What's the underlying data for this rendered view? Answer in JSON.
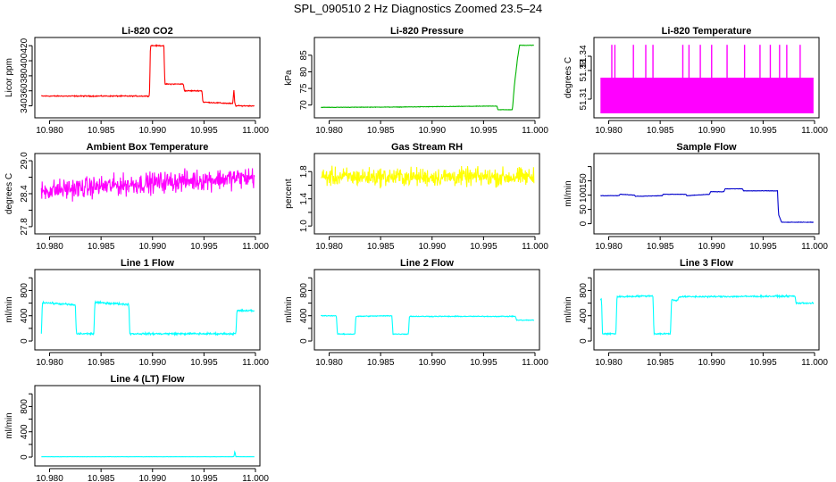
{
  "figure": {
    "title": "SPL_090510  2 Hz Diagnostics Zoomed 23.5–24"
  },
  "chart_data": [
    {
      "type": "line",
      "title": "Li-820 CO2",
      "ylabel": "Licor ppm",
      "color": "#ff0000",
      "xlim": [
        10.979,
        11.0
      ],
      "ylim": [
        330,
        425
      ],
      "xticks": [
        10.98,
        10.985,
        10.99,
        10.995,
        11.0
      ],
      "xtick_labels": [
        "10.980",
        "10.985",
        "10.990",
        "10.995",
        "11.000"
      ],
      "yticks": [
        340,
        360,
        380,
        400,
        420
      ],
      "ytick_labels": [
        "340",
        "360",
        "380",
        "400",
        "420"
      ],
      "series": [
        {
          "x": [
            10.9792,
            10.9897,
            10.9898,
            10.9911,
            10.9912,
            10.993,
            10.9931,
            10.9948,
            10.9949,
            10.9978,
            10.9979,
            10.998,
            10.9981,
            10.9999
          ],
          "y": [
            353,
            353,
            420,
            420,
            369,
            369,
            360,
            360,
            345,
            343,
            362,
            343,
            340,
            340
          ],
          "noise": 1
        }
      ]
    },
    {
      "type": "line",
      "title": "Li-820 Pressure",
      "ylabel": "kPa",
      "color": "#00b400",
      "xlim": [
        10.979,
        11.0
      ],
      "ylim": [
        67.5,
        89
      ],
      "xticks": [
        10.98,
        10.985,
        10.99,
        10.995,
        11.0
      ],
      "xtick_labels": [
        "10.980",
        "10.985",
        "10.990",
        "10.995",
        "11.000"
      ],
      "yticks": [
        70,
        75,
        80,
        85
      ],
      "ytick_labels": [
        "70",
        "75",
        "80",
        "85"
      ],
      "series": [
        {
          "x": [
            10.9792,
            10.9865,
            10.9963,
            10.9964,
            10.9978,
            10.998,
            10.9983,
            10.9985,
            10.9999
          ],
          "y": [
            69.3,
            69.4,
            69.7,
            68.6,
            68.6,
            76,
            84,
            88,
            88
          ],
          "noise": 0.1
        }
      ]
    },
    {
      "type": "line",
      "title": "Li-820 Temperature",
      "ylabel": "degrees C",
      "color": "#ff00ff",
      "xlim": [
        10.979,
        11.0
      ],
      "ylim": [
        51.3,
        51.35
      ],
      "xticks": [
        10.98,
        10.985,
        10.99,
        10.995,
        11.0
      ],
      "xtick_labels": [
        "10.980",
        "10.985",
        "10.990",
        "10.995",
        "11.000"
      ],
      "yticks": [
        51.31,
        51.33,
        51.34
      ],
      "ytick_labels": [
        "51.31",
        "51.33",
        "51.34"
      ],
      "bands": [
        {
          "x0": 10.9792,
          "x1": 10.9999,
          "y0": 51.3,
          "y1": 51.325
        }
      ],
      "spikes": {
        "x": [
          10.9803,
          10.9806,
          10.9824,
          10.9836,
          10.9843,
          10.9872,
          10.9878,
          10.9889,
          10.99,
          10.9915,
          10.9932,
          10.9947,
          10.9957,
          10.9966,
          10.9973,
          10.9986
        ],
        "y0": 51.325,
        "y1": 51.348
      }
    },
    {
      "type": "line",
      "title": "Ambient Box Temperature",
      "ylabel": "degrees C",
      "color": "#ff00ff",
      "xlim": [
        10.979,
        11.0
      ],
      "ylim": [
        27.75,
        29.05
      ],
      "xticks": [
        10.98,
        10.985,
        10.99,
        10.995,
        11.0
      ],
      "xtick_labels": [
        "10.980",
        "10.985",
        "10.990",
        "10.995",
        "11.000"
      ],
      "yticks": [
        27.8,
        28.1,
        28.4,
        28.7,
        29.0
      ],
      "ytick_labels": [
        "27.8",
        "",
        "28.4",
        "",
        "29.0"
      ],
      "series": [
        {
          "x": [
            10.9792,
            10.99,
            10.9999
          ],
          "y": [
            28.45,
            28.6,
            28.7
          ],
          "noise": 0.28
        }
      ]
    },
    {
      "type": "line",
      "title": "Gas Stream RH",
      "ylabel": "percent",
      "color": "#ffff00",
      "xlim": [
        10.979,
        11.0
      ],
      "ylim": [
        0.95,
        2.0
      ],
      "xticks": [
        10.98,
        10.985,
        10.99,
        10.995,
        11.0
      ],
      "xtick_labels": [
        "10.980",
        "10.985",
        "10.990",
        "10.995",
        "11.000"
      ],
      "yticks": [
        1.0,
        1.2,
        1.4,
        1.6,
        1.8
      ],
      "ytick_labels": [
        "1.0",
        "",
        "1.4",
        "",
        "1.8"
      ],
      "series": [
        {
          "x": [
            10.9792,
            10.9999
          ],
          "y": [
            1.72,
            1.72
          ],
          "noise": 0.2
        }
      ]
    },
    {
      "type": "line",
      "title": "Sample Flow",
      "ylabel": "ml/min",
      "color": "#0000cc",
      "xlim": [
        10.979,
        11.0
      ],
      "ylim": [
        -20,
        230
      ],
      "xticks": [
        10.98,
        10.985,
        10.99,
        10.995,
        11.0
      ],
      "xtick_labels": [
        "10.980",
        "10.985",
        "10.990",
        "10.995",
        "11.000"
      ],
      "yticks": [
        0,
        50,
        100,
        150,
        200
      ],
      "ytick_labels": [
        "0",
        "50",
        "100",
        "150",
        ""
      ],
      "series": [
        {
          "x": [
            10.9792,
            10.981,
            10.9811,
            10.9825,
            10.9826,
            10.9852,
            10.9853,
            10.9875,
            10.9876,
            10.9898,
            10.9899,
            10.9912,
            10.9913,
            10.993,
            10.9931,
            10.9964,
            10.9965,
            10.9968,
            10.9999
          ],
          "y": [
            98,
            98,
            103,
            100,
            96,
            98,
            103,
            103,
            98,
            103,
            112,
            112,
            122,
            122,
            115,
            115,
            32,
            5,
            5
          ],
          "noise": 1
        }
      ]
    },
    {
      "type": "line",
      "title": "Line 1 Flow",
      "ylabel": "ml/min",
      "color": "#00ffff",
      "xlim": [
        10.979,
        11.0
      ],
      "ylim": [
        -70,
        1060
      ],
      "xticks": [
        10.98,
        10.985,
        10.99,
        10.995,
        11.0
      ],
      "xtick_labels": [
        "10.980",
        "10.985",
        "10.990",
        "10.995",
        "11.000"
      ],
      "yticks": [
        0,
        200,
        400,
        600,
        800,
        1000
      ],
      "ytick_labels": [
        "0",
        "",
        "400",
        "",
        "800",
        ""
      ],
      "series": [
        {
          "x": [
            10.9792,
            10.9793,
            10.9825,
            10.9826,
            10.9843,
            10.9844,
            10.9877,
            10.9878,
            10.9981,
            10.9982,
            10.9999
          ],
          "y": [
            120,
            610,
            570,
            115,
            115,
            610,
            580,
            115,
            115,
            480,
            480
          ],
          "noise": 22
        }
      ]
    },
    {
      "type": "line",
      "title": "Line 2 Flow",
      "ylabel": "ml/min",
      "color": "#00ffff",
      "xlim": [
        10.979,
        11.0
      ],
      "ylim": [
        -70,
        1060
      ],
      "xticks": [
        10.98,
        10.985,
        10.99,
        10.995,
        11.0
      ],
      "xtick_labels": [
        "10.980",
        "10.985",
        "10.990",
        "10.995",
        "11.000"
      ],
      "yticks": [
        0,
        200,
        400,
        600,
        800,
        1000
      ],
      "ytick_labels": [
        "0",
        "",
        "400",
        "",
        "800",
        ""
      ],
      "series": [
        {
          "x": [
            10.9792,
            10.9807,
            10.9808,
            10.9825,
            10.9826,
            10.9861,
            10.9862,
            10.9877,
            10.9878,
            10.9981,
            10.9982,
            10.9999
          ],
          "y": [
            400,
            400,
            110,
            110,
            390,
            400,
            110,
            110,
            390,
            390,
            330,
            330
          ],
          "noise": 10
        }
      ]
    },
    {
      "type": "line",
      "title": "Line 3 Flow",
      "ylabel": "ml/min",
      "color": "#00ffff",
      "xlim": [
        10.979,
        11.0
      ],
      "ylim": [
        -70,
        1060
      ],
      "xticks": [
        10.98,
        10.985,
        10.99,
        10.995,
        11.0
      ],
      "xtick_labels": [
        "10.980",
        "10.985",
        "10.990",
        "10.995",
        "11.000"
      ],
      "yticks": [
        0,
        200,
        400,
        600,
        800,
        1000
      ],
      "ytick_labels": [
        "0",
        "",
        "400",
        "",
        "800",
        ""
      ],
      "series": [
        {
          "x": [
            10.9792,
            10.9793,
            10.9794,
            10.9807,
            10.9808,
            10.9843,
            10.9844,
            10.986,
            10.9861,
            10.9867,
            10.9868,
            10.9981,
            10.9982,
            10.9999
          ],
          "y": [
            660,
            660,
            115,
            115,
            700,
            715,
            115,
            115,
            650,
            640,
            700,
            710,
            600,
            600
          ],
          "noise": 18
        }
      ]
    },
    {
      "type": "line",
      "title": "Line 4 (LT) Flow",
      "ylabel": "ml/min",
      "color": "#00ffff",
      "xlim": [
        10.979,
        11.0
      ],
      "ylim": [
        -70,
        1060
      ],
      "xticks": [
        10.98,
        10.985,
        10.99,
        10.995,
        11.0
      ],
      "xtick_labels": [
        "10.980",
        "10.985",
        "10.990",
        "10.995",
        "11.000"
      ],
      "yticks": [
        0,
        200,
        400,
        600,
        800,
        1000
      ],
      "ytick_labels": [
        "0",
        "",
        "400",
        "",
        "800",
        ""
      ],
      "series": [
        {
          "x": [
            10.9792,
            10.9979,
            10.998,
            10.9981,
            10.9999
          ],
          "y": [
            5,
            5,
            90,
            5,
            5
          ],
          "noise": 2
        }
      ]
    }
  ]
}
